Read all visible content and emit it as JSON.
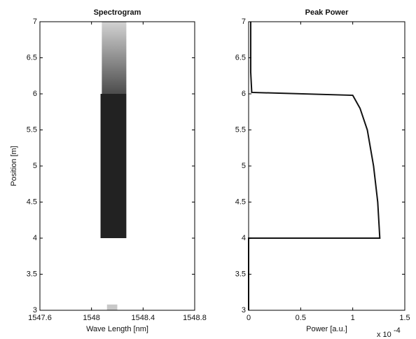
{
  "chart_data": [
    {
      "type": "heatmap",
      "title": "Spectrogram",
      "x_label": "Wave Length [nm]",
      "y_label": "Position [m]",
      "xlim": [
        1547.6,
        1548.8
      ],
      "xticks": [
        1547.6,
        1548,
        1548.4,
        1548.8
      ],
      "ylim": [
        3,
        7
      ],
      "yticks": [
        3,
        3.5,
        4,
        4.5,
        5,
        5.5,
        6,
        6.5,
        7
      ],
      "color": "#222222",
      "regions": [
        {
          "x": [
            1548.07,
            1548.27
          ],
          "y": [
            4,
            6
          ],
          "intensity": 1
        },
        {
          "x": [
            1548.08,
            1548.27
          ],
          "y": [
            6,
            7
          ],
          "intensity": 0.35
        },
        {
          "x": [
            1548.12,
            1548.2
          ],
          "y": [
            3,
            3.08
          ],
          "intensity": 0.25
        }
      ]
    },
    {
      "type": "line",
      "title": "Peak Power",
      "x_label": "Power [a.u.]",
      "exponent_base": "x 10",
      "exponent_power": "-4",
      "xlim": [
        0,
        1.5
      ],
      "xticks": [
        0,
        0.5,
        1,
        1.5
      ],
      "ylim": [
        3,
        7
      ],
      "yticks": [
        3,
        3.5,
        4,
        4.5,
        5,
        5.5,
        6,
        6.5,
        7
      ],
      "series": [
        {
          "color": "#111111",
          "x": [
            0,
            0,
            1.26,
            1.24,
            1.2,
            1.14,
            1.07,
            1.0,
            0.03,
            0.02,
            0.02
          ],
          "y": [
            3,
            4,
            4,
            4.5,
            5,
            5.5,
            5.8,
            5.98,
            6.02,
            6.3,
            7
          ]
        }
      ]
    }
  ]
}
